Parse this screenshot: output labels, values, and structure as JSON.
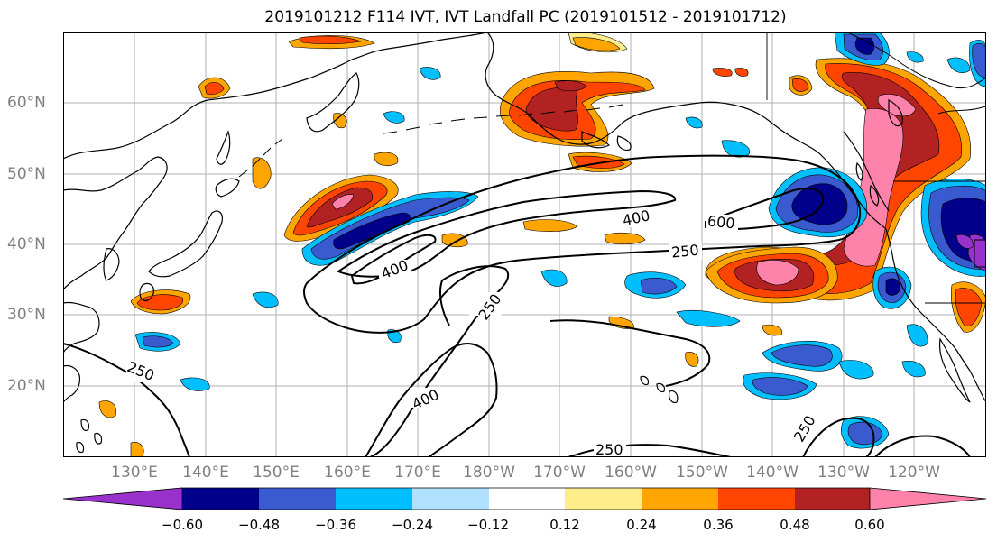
{
  "title": "2019101212 F114 IVT, IVT Landfall PC (2019101512 - 2019101712)",
  "lat_labels": [
    "60°N",
    "50°N",
    "40°N",
    "30°N",
    "20°N"
  ],
  "lon_labels": [
    "130°E",
    "140°E",
    "150°E",
    "160°E",
    "170°E",
    "180°W",
    "170°W",
    "160°W",
    "150°W",
    "140°W",
    "130°W",
    "120°W"
  ],
  "contour_labels": {
    "c400a": "400",
    "c600": "600",
    "c250a": "250",
    "c400b": "400",
    "c250b": "250",
    "c250c": "250",
    "c400c": "400",
    "c250d": "250",
    "c250e": "250"
  },
  "colorbar": {
    "ticks": [
      "−0.60",
      "−0.48",
      "−0.36",
      "−0.24",
      "−0.12",
      "0.12",
      "0.24",
      "0.36",
      "0.48",
      "0.60"
    ],
    "colors": [
      "#9932cc",
      "#00008b",
      "#3a5bd0",
      "#00bfff",
      "#b0e2ff",
      "#ffffff",
      "#ffec8b",
      "#ffa500",
      "#ff4500",
      "#b22222",
      "#ff82ab"
    ]
  }
}
